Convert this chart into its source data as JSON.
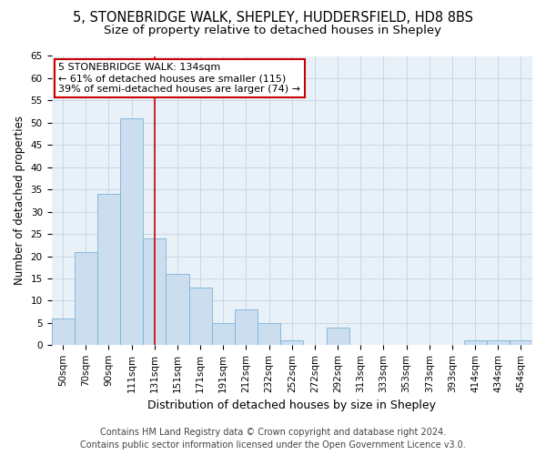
{
  "title1": "5, STONEBRIDGE WALK, SHEPLEY, HUDDERSFIELD, HD8 8BS",
  "title2": "Size of property relative to detached houses in Shepley",
  "xlabel": "Distribution of detached houses by size in Shepley",
  "ylabel": "Number of detached properties",
  "footer1": "Contains HM Land Registry data © Crown copyright and database right 2024.",
  "footer2": "Contains public sector information licensed under the Open Government Licence v3.0.",
  "annotation_line1": "5 STONEBRIDGE WALK: 134sqm",
  "annotation_line2": "← 61% of detached houses are smaller (115)",
  "annotation_line3": "39% of semi-detached houses are larger (74) →",
  "bar_labels": [
    "50sqm",
    "70sqm",
    "90sqm",
    "111sqm",
    "131sqm",
    "151sqm",
    "171sqm",
    "191sqm",
    "212sqm",
    "232sqm",
    "252sqm",
    "272sqm",
    "292sqm",
    "313sqm",
    "333sqm",
    "353sqm",
    "373sqm",
    "393sqm",
    "414sqm",
    "434sqm",
    "454sqm"
  ],
  "bar_values": [
    6,
    21,
    34,
    51,
    24,
    16,
    13,
    5,
    8,
    5,
    1,
    0,
    4,
    0,
    0,
    0,
    0,
    0,
    1,
    1,
    1
  ],
  "bar_color": "#ccddf0",
  "bar_edge_color": "#7ab4d8",
  "vline_index": 4,
  "vline_color": "#cc0000",
  "ylim": [
    0,
    65
  ],
  "yticks": [
    0,
    5,
    10,
    15,
    20,
    25,
    30,
    35,
    40,
    45,
    50,
    55,
    60,
    65
  ],
  "grid_color": "#c8d8e8",
  "background_color": "#e8f0f8",
  "annotation_box_edge_color": "#cc0000",
  "title1_fontsize": 10.5,
  "title2_fontsize": 9.5,
  "xlabel_fontsize": 9,
  "ylabel_fontsize": 8.5,
  "tick_label_fontsize": 7.5,
  "footer_fontsize": 7
}
